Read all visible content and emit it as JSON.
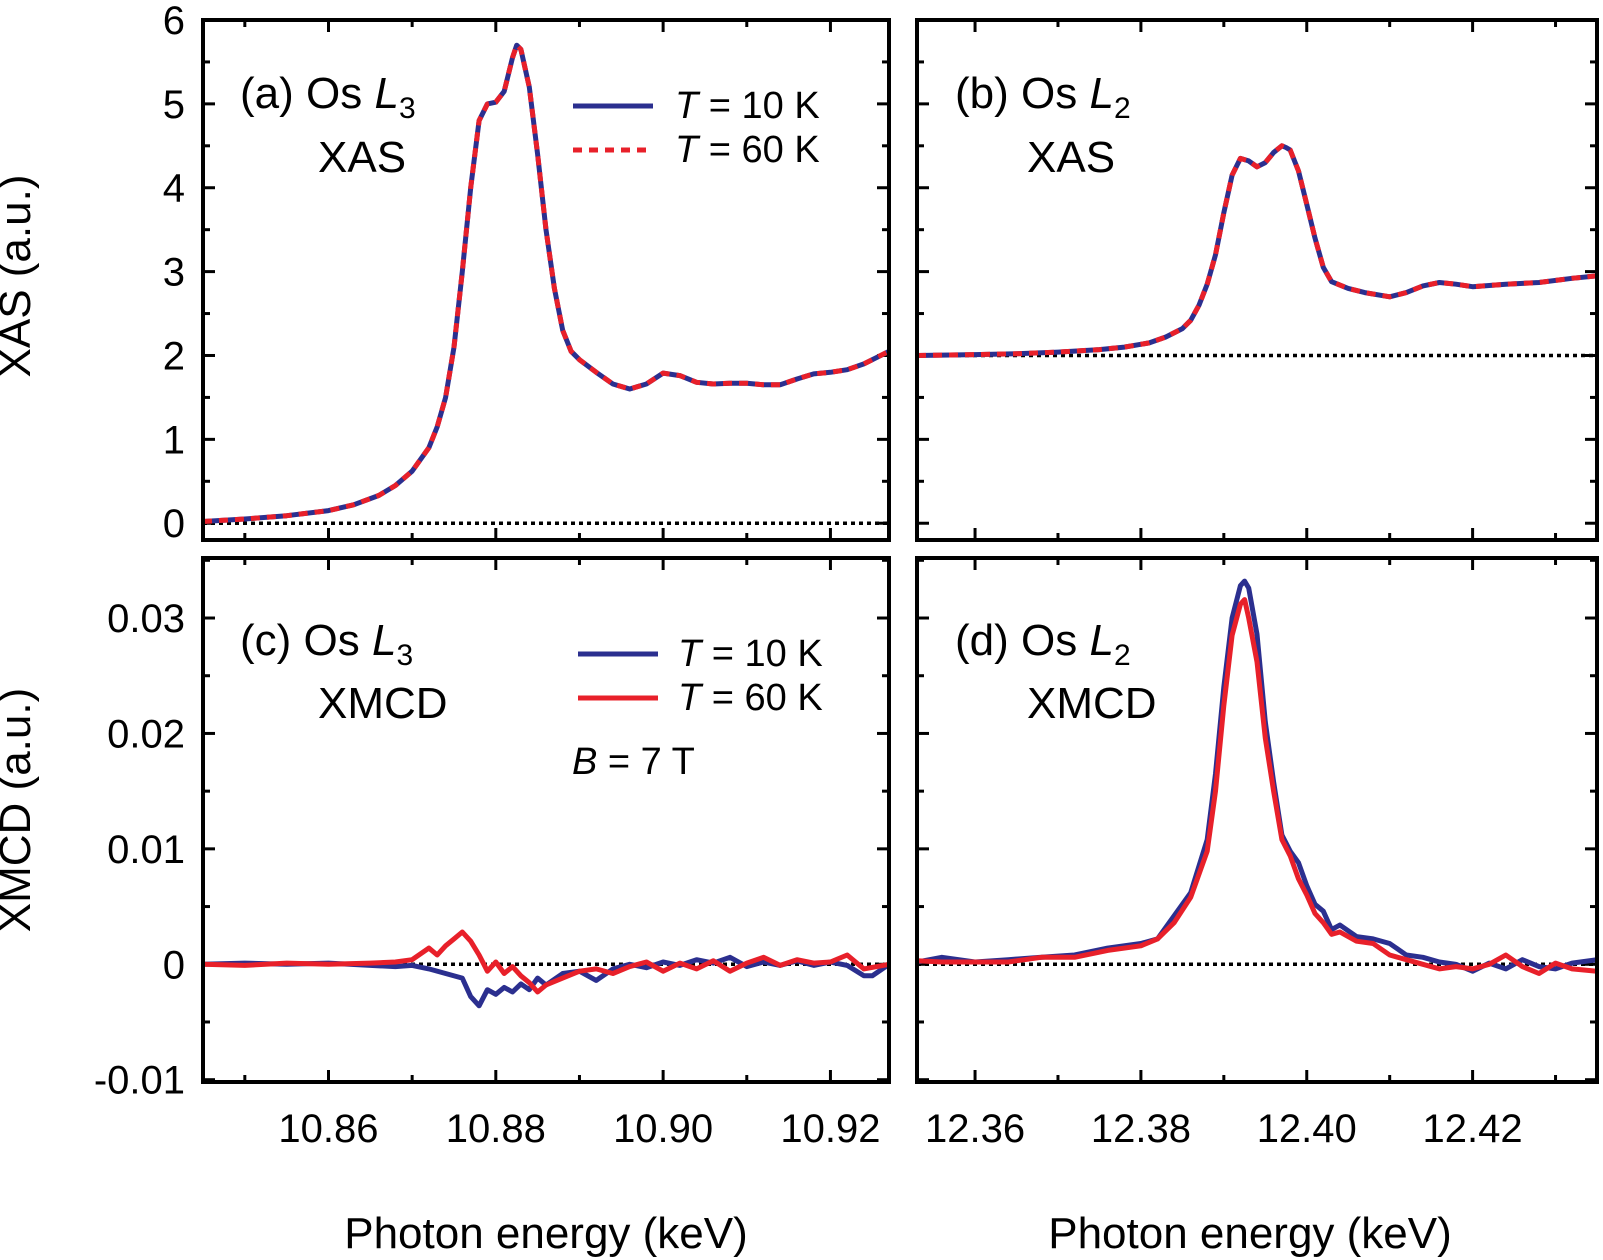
{
  "colors": {
    "series_10K": "#2b2f8f",
    "series_60K": "#e8202a",
    "axis": "#000000",
    "background": "#ffffff"
  },
  "axis_titles": {
    "y_top": "XAS (a.u.)",
    "y_bottom": "XMCD (a.u.)",
    "x_left": "Photon energy (keV)",
    "x_right": "Photon energy (keV)"
  },
  "chart_data": [
    {
      "id": "a",
      "type": "line",
      "panel_label": "(a) Os ",
      "edge_symbol": "L",
      "edge_subscript": "3",
      "subtitle": "XAS",
      "xlim": [
        10.845,
        10.927
      ],
      "ylim": [
        -0.2,
        6.0
      ],
      "x_ticks": [
        10.86,
        10.88,
        10.9,
        10.92
      ],
      "x_tick_labels": [],
      "y_ticks": [
        0,
        1,
        2,
        3,
        4,
        5,
        6
      ],
      "y_tick_labels": [
        "0",
        "1",
        "2",
        "3",
        "4",
        "5",
        "6"
      ],
      "reference_line": 0,
      "legend": {
        "placement": "top-right",
        "entries": [
          {
            "symbol": "T",
            "text": " = 10 K",
            "style": "solid"
          },
          {
            "symbol": "T",
            "text": " = 60 K",
            "style": "dashed"
          }
        ]
      },
      "series": [
        {
          "name": "T = 10 K",
          "style": "solid",
          "x": [
            10.845,
            10.85,
            10.855,
            10.86,
            10.863,
            10.866,
            10.868,
            10.87,
            10.872,
            10.873,
            10.874,
            10.875,
            10.876,
            10.877,
            10.878,
            10.879,
            10.88,
            10.881,
            10.882,
            10.8825,
            10.883,
            10.884,
            10.885,
            10.886,
            10.887,
            10.888,
            10.889,
            10.89,
            10.892,
            10.894,
            10.896,
            10.898,
            10.9,
            10.902,
            10.904,
            10.906,
            10.908,
            10.91,
            10.912,
            10.914,
            10.916,
            10.918,
            10.92,
            10.922,
            10.924,
            10.927
          ],
          "y": [
            0.02,
            0.05,
            0.09,
            0.15,
            0.22,
            0.33,
            0.45,
            0.62,
            0.9,
            1.15,
            1.5,
            2.1,
            3.0,
            4.0,
            4.8,
            5.0,
            5.02,
            5.15,
            5.55,
            5.7,
            5.65,
            5.2,
            4.4,
            3.5,
            2.8,
            2.3,
            2.05,
            1.95,
            1.8,
            1.66,
            1.6,
            1.66,
            1.79,
            1.76,
            1.68,
            1.66,
            1.67,
            1.67,
            1.65,
            1.65,
            1.72,
            1.78,
            1.8,
            1.83,
            1.9,
            2.05
          ]
        },
        {
          "name": "T = 60 K",
          "style": "dashed",
          "x": [
            10.845,
            10.85,
            10.855,
            10.86,
            10.863,
            10.866,
            10.868,
            10.87,
            10.872,
            10.873,
            10.874,
            10.875,
            10.876,
            10.877,
            10.878,
            10.879,
            10.88,
            10.881,
            10.882,
            10.8825,
            10.883,
            10.884,
            10.885,
            10.886,
            10.887,
            10.888,
            10.889,
            10.89,
            10.892,
            10.894,
            10.896,
            10.898,
            10.9,
            10.902,
            10.904,
            10.906,
            10.908,
            10.91,
            10.912,
            10.914,
            10.916,
            10.918,
            10.92,
            10.922,
            10.924,
            10.927
          ],
          "y": [
            0.02,
            0.05,
            0.09,
            0.15,
            0.22,
            0.33,
            0.45,
            0.62,
            0.9,
            1.15,
            1.5,
            2.1,
            3.0,
            4.0,
            4.8,
            5.0,
            5.02,
            5.15,
            5.55,
            5.7,
            5.65,
            5.2,
            4.4,
            3.5,
            2.8,
            2.3,
            2.05,
            1.95,
            1.8,
            1.66,
            1.6,
            1.66,
            1.79,
            1.76,
            1.68,
            1.66,
            1.67,
            1.67,
            1.65,
            1.65,
            1.72,
            1.78,
            1.8,
            1.83,
            1.9,
            2.05
          ]
        }
      ]
    },
    {
      "id": "b",
      "type": "line",
      "panel_label": "(b) Os ",
      "edge_symbol": "L",
      "edge_subscript": "2",
      "subtitle": "XAS",
      "xlim": [
        12.353,
        12.435
      ],
      "ylim": [
        -0.2,
        6.0
      ],
      "x_ticks": [
        12.36,
        12.38,
        12.4,
        12.42
      ],
      "x_tick_labels": [],
      "y_ticks": [
        0,
        1,
        2,
        3,
        4,
        5,
        6
      ],
      "y_tick_labels": [],
      "reference_line": 2,
      "series": [
        {
          "name": "T = 10 K",
          "style": "solid",
          "x": [
            12.353,
            12.36,
            12.365,
            12.37,
            12.375,
            12.378,
            12.381,
            12.383,
            12.385,
            12.386,
            12.387,
            12.388,
            12.389,
            12.39,
            12.391,
            12.392,
            12.393,
            12.394,
            12.395,
            12.396,
            12.397,
            12.3975,
            12.398,
            12.399,
            12.4,
            12.401,
            12.402,
            12.403,
            12.405,
            12.407,
            12.41,
            12.412,
            12.414,
            12.416,
            12.418,
            12.42,
            12.424,
            12.428,
            12.432,
            12.435
          ],
          "y": [
            2.0,
            2.01,
            2.02,
            2.04,
            2.07,
            2.1,
            2.15,
            2.22,
            2.32,
            2.42,
            2.6,
            2.85,
            3.2,
            3.7,
            4.15,
            4.35,
            4.32,
            4.25,
            4.3,
            4.42,
            4.5,
            4.48,
            4.45,
            4.2,
            3.8,
            3.4,
            3.05,
            2.88,
            2.8,
            2.75,
            2.7,
            2.75,
            2.83,
            2.87,
            2.85,
            2.82,
            2.85,
            2.87,
            2.92,
            2.95
          ]
        },
        {
          "name": "T = 60 K",
          "style": "dashed",
          "x": [
            12.353,
            12.36,
            12.365,
            12.37,
            12.375,
            12.378,
            12.381,
            12.383,
            12.385,
            12.386,
            12.387,
            12.388,
            12.389,
            12.39,
            12.391,
            12.392,
            12.393,
            12.394,
            12.395,
            12.396,
            12.397,
            12.3975,
            12.398,
            12.399,
            12.4,
            12.401,
            12.402,
            12.403,
            12.405,
            12.407,
            12.41,
            12.412,
            12.414,
            12.416,
            12.418,
            12.42,
            12.424,
            12.428,
            12.432,
            12.435
          ],
          "y": [
            2.0,
            2.01,
            2.02,
            2.04,
            2.07,
            2.1,
            2.15,
            2.22,
            2.32,
            2.42,
            2.6,
            2.85,
            3.2,
            3.7,
            4.15,
            4.35,
            4.32,
            4.25,
            4.3,
            4.42,
            4.5,
            4.48,
            4.45,
            4.2,
            3.8,
            3.4,
            3.05,
            2.88,
            2.8,
            2.75,
            2.7,
            2.75,
            2.83,
            2.87,
            2.85,
            2.82,
            2.85,
            2.87,
            2.92,
            2.95
          ]
        }
      ]
    },
    {
      "id": "c",
      "type": "line",
      "panel_label": "(c) Os ",
      "edge_symbol": "L",
      "edge_subscript": "3",
      "subtitle": "XMCD",
      "xlim": [
        10.845,
        10.927
      ],
      "ylim": [
        -0.0102,
        0.0352
      ],
      "x_ticks": [
        10.86,
        10.88,
        10.9,
        10.92
      ],
      "x_tick_labels": [
        "10.86",
        "10.88",
        "10.90",
        "10.92"
      ],
      "y_ticks": [
        -0.01,
        0,
        0.01,
        0.02,
        0.03
      ],
      "y_tick_labels": [
        "-0.01",
        "0",
        "0.01",
        "0.02",
        "0.03"
      ],
      "reference_line": 0,
      "legend": {
        "placement": "top-right",
        "entries": [
          {
            "symbol": "T",
            "text": " = 10 K",
            "style": "solid"
          },
          {
            "symbol": "T",
            "text": " = 60 K",
            "style": "solid"
          }
        ],
        "note_symbol": "B",
        "note_text": " = 7 T"
      },
      "series": [
        {
          "name": "T = 10 K",
          "style": "solid",
          "x": [
            10.845,
            10.85,
            10.855,
            10.86,
            10.865,
            10.868,
            10.87,
            10.872,
            10.874,
            10.876,
            10.877,
            10.878,
            10.879,
            10.88,
            10.881,
            10.882,
            10.883,
            10.884,
            10.885,
            10.886,
            10.888,
            10.89,
            10.892,
            10.894,
            10.896,
            10.898,
            10.9,
            10.902,
            10.904,
            10.906,
            10.908,
            10.91,
            10.912,
            10.914,
            10.916,
            10.918,
            10.92,
            10.922,
            10.924,
            10.925,
            10.927
          ],
          "y": [
            0.0,
            0.0001,
            0.0,
            0.0001,
            -0.0001,
            -0.0002,
            -0.0001,
            -0.0004,
            -0.0008,
            -0.0012,
            -0.0028,
            -0.0036,
            -0.0022,
            -0.0026,
            -0.002,
            -0.0024,
            -0.0017,
            -0.0022,
            -0.0012,
            -0.0018,
            -0.0008,
            -0.0006,
            -0.0014,
            -0.0004,
            0.0,
            -0.0003,
            0.0002,
            -0.0001,
            0.0004,
            0.0001,
            0.0006,
            -0.0002,
            0.0002,
            -0.0001,
            0.0003,
            -0.0001,
            0.0002,
            -0.0001,
            -0.001,
            -0.001,
            0.0
          ]
        },
        {
          "name": "T = 60 K",
          "style": "solid",
          "x": [
            10.845,
            10.85,
            10.855,
            10.86,
            10.865,
            10.868,
            10.87,
            10.872,
            10.873,
            10.874,
            10.875,
            10.876,
            10.877,
            10.878,
            10.879,
            10.88,
            10.881,
            10.882,
            10.883,
            10.884,
            10.885,
            10.886,
            10.888,
            10.89,
            10.892,
            10.894,
            10.896,
            10.898,
            10.9,
            10.902,
            10.904,
            10.906,
            10.908,
            10.91,
            10.912,
            10.914,
            10.916,
            10.918,
            10.92,
            10.922,
            10.924,
            10.927
          ],
          "y": [
            0.0,
            -0.0001,
            0.0001,
            0.0,
            0.0001,
            0.0002,
            0.0004,
            0.0014,
            0.0008,
            0.0016,
            0.0022,
            0.0028,
            0.002,
            0.0008,
            -0.0006,
            0.0002,
            -0.0008,
            -0.0002,
            -0.001,
            -0.0016,
            -0.0024,
            -0.0018,
            -0.0012,
            -0.0006,
            -0.0004,
            -0.0008,
            -0.0002,
            0.0002,
            -0.0006,
            0.0001,
            -0.0004,
            0.0003,
            -0.0006,
            0.0001,
            0.0006,
            -0.0001,
            0.0004,
            0.0001,
            0.0002,
            0.0008,
            -0.0004,
            0.0
          ]
        }
      ]
    },
    {
      "id": "d",
      "type": "line",
      "panel_label": "(d) Os ",
      "edge_symbol": "L",
      "edge_subscript": "2",
      "subtitle": "XMCD",
      "xlim": [
        12.353,
        12.435
      ],
      "ylim": [
        -0.0102,
        0.0352
      ],
      "x_ticks": [
        12.36,
        12.38,
        12.4,
        12.42
      ],
      "x_tick_labels": [
        "12.36",
        "12.38",
        "12.40",
        "12.42"
      ],
      "y_ticks": [
        -0.01,
        0,
        0.01,
        0.02,
        0.03
      ],
      "y_tick_labels": [],
      "reference_line": 0,
      "series": [
        {
          "name": "T = 10 K",
          "style": "solid",
          "x": [
            12.353,
            12.356,
            12.36,
            12.364,
            12.368,
            12.372,
            12.376,
            12.38,
            12.382,
            12.384,
            12.386,
            12.388,
            12.389,
            12.39,
            12.391,
            12.392,
            12.3925,
            12.393,
            12.394,
            12.395,
            12.396,
            12.397,
            12.398,
            12.399,
            12.4,
            12.401,
            12.402,
            12.403,
            12.404,
            12.406,
            12.408,
            12.41,
            12.412,
            12.414,
            12.416,
            12.418,
            12.42,
            12.422,
            12.424,
            12.426,
            12.428,
            12.43,
            12.432,
            12.435
          ],
          "y": [
            0.0002,
            0.0006,
            0.0002,
            0.0004,
            0.0006,
            0.0008,
            0.0014,
            0.0018,
            0.0022,
            0.0042,
            0.0062,
            0.0108,
            0.0165,
            0.024,
            0.03,
            0.0328,
            0.0332,
            0.0326,
            0.0286,
            0.021,
            0.0158,
            0.0112,
            0.0098,
            0.0088,
            0.0068,
            0.0052,
            0.0046,
            0.003,
            0.0034,
            0.0024,
            0.0022,
            0.0018,
            0.0008,
            0.0006,
            0.0002,
            0.0,
            -0.0006,
            0.0001,
            -0.0004,
            0.0004,
            -0.0002,
            -0.0004,
            0.0001,
            0.0004
          ]
        },
        {
          "name": "T = 60 K",
          "style": "solid",
          "x": [
            12.353,
            12.356,
            12.36,
            12.364,
            12.368,
            12.372,
            12.376,
            12.38,
            12.382,
            12.384,
            12.386,
            12.388,
            12.389,
            12.39,
            12.391,
            12.392,
            12.3925,
            12.393,
            12.394,
            12.395,
            12.396,
            12.397,
            12.398,
            12.399,
            12.4,
            12.401,
            12.402,
            12.403,
            12.404,
            12.406,
            12.408,
            12.41,
            12.412,
            12.414,
            12.416,
            12.418,
            12.42,
            12.422,
            12.424,
            12.426,
            12.428,
            12.43,
            12.432,
            12.435
          ],
          "y": [
            0.0003,
            0.0002,
            0.0002,
            0.0002,
            0.0006,
            0.0006,
            0.0012,
            0.0016,
            0.0022,
            0.0036,
            0.0058,
            0.0098,
            0.015,
            0.0224,
            0.0285,
            0.0312,
            0.0316,
            0.03,
            0.0262,
            0.0196,
            0.015,
            0.0108,
            0.0094,
            0.0074,
            0.006,
            0.0044,
            0.0036,
            0.0026,
            0.0028,
            0.002,
            0.0018,
            0.0008,
            0.0004,
            0.0,
            -0.0004,
            -0.0002,
            -0.0004,
            0.0,
            0.0008,
            -0.0002,
            -0.0008,
            0.0001,
            -0.0004,
            -0.0006
          ]
        }
      ]
    }
  ]
}
